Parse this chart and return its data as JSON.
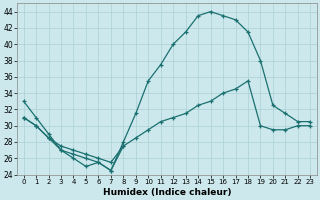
{
  "xlabel": "Humidex (Indice chaleur)",
  "xlim": [
    -0.5,
    23.5
  ],
  "ylim": [
    24,
    45
  ],
  "yticks": [
    24,
    26,
    28,
    30,
    32,
    34,
    36,
    38,
    40,
    42,
    44
  ],
  "xticks": [
    0,
    1,
    2,
    3,
    4,
    5,
    6,
    7,
    8,
    9,
    10,
    11,
    12,
    13,
    14,
    15,
    16,
    17,
    18,
    19,
    20,
    21,
    22,
    23
  ],
  "background_color": "#cce8ec",
  "grid_color": "#b0d4d8",
  "line_color": "#1a7070",
  "curve_top_x": [
    0,
    1,
    2,
    3,
    4,
    5,
    6,
    7,
    8,
    9,
    10,
    11,
    12,
    13,
    14,
    15,
    16,
    17,
    18,
    19,
    20,
    21,
    22,
    23
  ],
  "curve_top_y": [
    33,
    31,
    29,
    27,
    26,
    25,
    25.5,
    24.5,
    28,
    31.5,
    35.5,
    37.5,
    40,
    41.5,
    43.5,
    44,
    43.5,
    43,
    41.5,
    38,
    32.5,
    31.5,
    30.5,
    30.5
  ],
  "curve_mid_x": [
    0,
    1,
    2,
    3,
    4,
    5,
    6,
    7,
    8,
    9,
    10,
    11,
    12,
    13,
    14,
    15,
    16,
    17,
    18,
    19,
    20,
    21,
    22,
    23
  ],
  "curve_mid_y": [
    31,
    30,
    28.5,
    27.5,
    27,
    26.5,
    26,
    25.5,
    27.5,
    28.5,
    29.5,
    30.5,
    31,
    31.5,
    32.5,
    33,
    34,
    34.5,
    35.5,
    30,
    29.5,
    29.5,
    30,
    30
  ],
  "curve_bot_x": [
    0,
    1,
    2,
    3,
    4,
    5,
    6,
    7,
    8
  ],
  "curve_bot_y": [
    31,
    30,
    28.5,
    27,
    26.5,
    26,
    25.5,
    24.5,
    27.5
  ]
}
